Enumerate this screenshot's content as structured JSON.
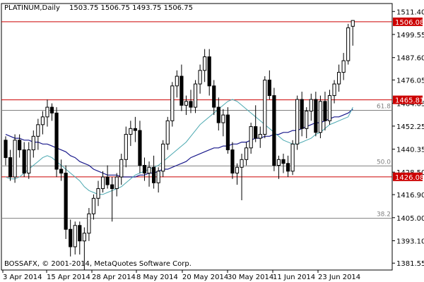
{
  "header": {
    "symbol": "PLATINUM,Daily",
    "ohlc": "1503.75 1506.75 1493.75 1506.75"
  },
  "footer": {
    "copyright": "BOSSAFX, © 2001-2014, MetaQuotes Software Corp."
  },
  "colors": {
    "candle": "#000000",
    "resistance": "#cc0000",
    "fib_line": "#808080",
    "ma_fast": "#4aa8b0",
    "ma_slow": "#1a1a8c",
    "price_tag": "#cc0000"
  },
  "chart_data": {
    "type": "candlestick",
    "ylim": [
      1378.0,
      1515.5
    ],
    "y_ticks": [
      "1511.40",
      "1499.55",
      "1487.60",
      "1476.05",
      "1464.05",
      "1452.25",
      "1440.35",
      "1428.50",
      "1416.90",
      "1405.00",
      "1393.10",
      "1381.55"
    ],
    "x_ticks": [
      "3 Apr 2014",
      "15 Apr 2014",
      "28 Apr 2014",
      "8 May 2014",
      "20 May 2014",
      "30 May 2014",
      "11 Jun 2014",
      "23 Jun 2014"
    ],
    "price_tags": [
      {
        "label": "1506.08",
        "value": 1506.08
      },
      {
        "label": "1465.81",
        "value": 1465.81
      },
      {
        "label": "1426.08",
        "value": 1426.08
      }
    ],
    "fib_levels": [
      {
        "label": "61.8",
        "value": 1460.4
      },
      {
        "label": "50.0",
        "value": 1431.7
      },
      {
        "label": "38.2",
        "value": 1404.7
      }
    ],
    "candles": [
      [
        1445,
        1447,
        1432,
        1436
      ],
      [
        1436,
        1440,
        1424,
        1426
      ],
      [
        1426,
        1448,
        1423,
        1445
      ],
      [
        1445,
        1448,
        1436,
        1440
      ],
      [
        1440,
        1444,
        1426,
        1428
      ],
      [
        1428,
        1444,
        1425,
        1440
      ],
      [
        1440,
        1450,
        1436,
        1447
      ],
      [
        1447,
        1456,
        1440,
        1453
      ],
      [
        1453,
        1460,
        1448,
        1457
      ],
      [
        1457,
        1466,
        1452,
        1462
      ],
      [
        1462,
        1464,
        1455,
        1459
      ],
      [
        1459,
        1462,
        1426,
        1430
      ],
      [
        1430,
        1435,
        1424,
        1428
      ],
      [
        1428,
        1432,
        1394,
        1399
      ],
      [
        1399,
        1404,
        1385,
        1390
      ],
      [
        1390,
        1403,
        1386,
        1401
      ],
      [
        1401,
        1403,
        1386,
        1393
      ],
      [
        1393,
        1400,
        1378,
        1397
      ],
      [
        1397,
        1410,
        1393,
        1407
      ],
      [
        1407,
        1417,
        1404,
        1415
      ],
      [
        1415,
        1424,
        1411,
        1420
      ],
      [
        1420,
        1429,
        1418,
        1426
      ],
      [
        1426,
        1432,
        1420,
        1422
      ],
      [
        1422,
        1426,
        1403,
        1420
      ],
      [
        1420,
        1428,
        1416,
        1426
      ],
      [
        1426,
        1438,
        1422,
        1435
      ],
      [
        1435,
        1452,
        1431,
        1448
      ],
      [
        1448,
        1455,
        1442,
        1451
      ],
      [
        1451,
        1457,
        1444,
        1450
      ],
      [
        1450,
        1455,
        1428,
        1432
      ],
      [
        1432,
        1436,
        1424,
        1428
      ],
      [
        1428,
        1434,
        1421,
        1431
      ],
      [
        1431,
        1437,
        1420,
        1423
      ],
      [
        1423,
        1431,
        1418,
        1429
      ],
      [
        1429,
        1445,
        1426,
        1443
      ],
      [
        1443,
        1457,
        1440,
        1455
      ],
      [
        1455,
        1475,
        1452,
        1473
      ],
      [
        1473,
        1481,
        1467,
        1478
      ],
      [
        1478,
        1484,
        1460,
        1463
      ],
      [
        1463,
        1468,
        1458,
        1465
      ],
      [
        1465,
        1471,
        1459,
        1462
      ],
      [
        1462,
        1476,
        1459,
        1474
      ],
      [
        1474,
        1484,
        1469,
        1481
      ],
      [
        1481,
        1492,
        1475,
        1488
      ],
      [
        1488,
        1492,
        1468,
        1473
      ],
      [
        1473,
        1476,
        1458,
        1462
      ],
      [
        1462,
        1467,
        1450,
        1454
      ],
      [
        1454,
        1461,
        1447,
        1458
      ],
      [
        1458,
        1462,
        1438,
        1440
      ],
      [
        1440,
        1444,
        1425,
        1428
      ],
      [
        1428,
        1433,
        1422,
        1431
      ],
      [
        1431,
        1438,
        1414,
        1435
      ],
      [
        1435,
        1444,
        1432,
        1441
      ],
      [
        1441,
        1454,
        1438,
        1452
      ],
      [
        1452,
        1463,
        1444,
        1446
      ],
      [
        1446,
        1452,
        1441,
        1448
      ],
      [
        1448,
        1478,
        1446,
        1476
      ],
      [
        1476,
        1481,
        1466,
        1468
      ],
      [
        1468,
        1472,
        1429,
        1432
      ],
      [
        1432,
        1437,
        1425,
        1435
      ],
      [
        1435,
        1438,
        1428,
        1433
      ],
      [
        1433,
        1437,
        1426,
        1429
      ],
      [
        1429,
        1445,
        1427,
        1443
      ],
      [
        1443,
        1468,
        1440,
        1466
      ],
      [
        1466,
        1470,
        1447,
        1451
      ],
      [
        1451,
        1462,
        1446,
        1460
      ],
      [
        1460,
        1469,
        1455,
        1466
      ],
      [
        1466,
        1470,
        1447,
        1449
      ],
      [
        1449,
        1468,
        1446,
        1465
      ],
      [
        1465,
        1470,
        1450,
        1455
      ],
      [
        1455,
        1471,
        1453,
        1468
      ],
      [
        1468,
        1476,
        1464,
        1474
      ],
      [
        1474,
        1484,
        1470,
        1480
      ],
      [
        1480,
        1490,
        1476,
        1486
      ],
      [
        1486,
        1505,
        1484,
        1503
      ],
      [
        1503.75,
        1506.75,
        1493.75,
        1506.75
      ]
    ],
    "ma_fast": [
      1426,
      1425,
      1425,
      1426,
      1428,
      1430,
      1432,
      1434,
      1436,
      1437,
      1436,
      1434,
      1432,
      1430,
      1428,
      1426,
      1424,
      1421,
      1419,
      1418,
      1417,
      1417,
      1418,
      1419,
      1420,
      1421,
      1423,
      1425,
      1427,
      1428,
      1429,
      1430,
      1431,
      1432,
      1434,
      1436,
      1438,
      1440,
      1442,
      1444,
      1447,
      1450,
      1453,
      1455,
      1457,
      1459,
      1461,
      1463,
      1465,
      1466,
      1465,
      1463,
      1461,
      1459,
      1457,
      1455,
      1453,
      1451,
      1449,
      1447,
      1445,
      1444,
      1443,
      1443,
      1444,
      1445,
      1446,
      1448,
      1449,
      1451,
      1453,
      1454,
      1455,
      1456,
      1457,
      1462
    ],
    "ma_slow": [
      1448,
      1447,
      1446,
      1446,
      1445,
      1445,
      1444,
      1444,
      1443,
      1443,
      1442,
      1441,
      1440,
      1439,
      1437,
      1436,
      1434,
      1433,
      1432,
      1430,
      1429,
      1428,
      1427,
      1427,
      1427,
      1426,
      1426,
      1426,
      1426,
      1427,
      1427,
      1428,
      1428,
      1429,
      1430,
      1430,
      1431,
      1432,
      1433,
      1434,
      1436,
      1437,
      1438,
      1439,
      1440,
      1441,
      1441,
      1442,
      1442,
      1443,
      1443,
      1444,
      1444,
      1445,
      1446,
      1446,
      1447,
      1447,
      1448,
      1448,
      1449,
      1449,
      1450,
      1450,
      1451,
      1452,
      1453,
      1454,
      1454,
      1455,
      1456,
      1457,
      1457,
      1458,
      1459,
      1461
    ]
  }
}
